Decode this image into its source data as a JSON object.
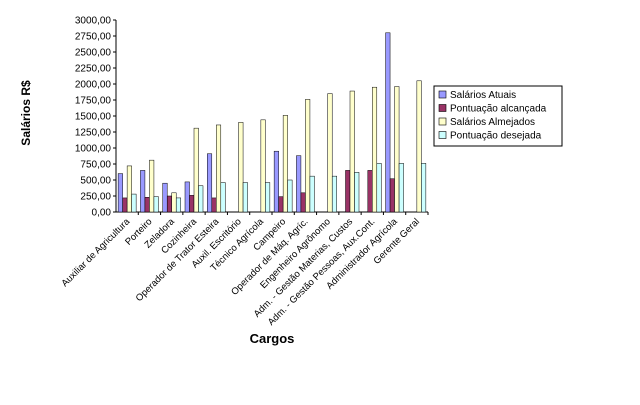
{
  "chart_data": {
    "type": "bar",
    "title": "",
    "xlabel": "Cargos",
    "ylabel": "Salários R$",
    "ylim": [
      0,
      3000
    ],
    "ytick_step": 250,
    "ytick_labels": [
      "0,00",
      "250,00",
      "500,00",
      "750,00",
      "1000,00",
      "1250,00",
      "1500,00",
      "1750,00",
      "2000,00",
      "2250,00",
      "2500,00",
      "2750,00",
      "3000,00"
    ],
    "grid": false,
    "legend_position": "right",
    "categories": [
      "Auxiliar de Agricultura",
      "Porteiro",
      "Zeladora",
      "Cozinheira",
      "Operador de Trator Esteira",
      "Auxil. Escritório",
      "Técnico Agrícola",
      "Campeiro",
      "Operador de Máq. Agríc.",
      "Engenheiro Agrônomo",
      "Adm. - Gestão Materias, Custos",
      "Adm. - Gestão Pessoas, Aux.Cont.",
      "Administrador Agrícola",
      "Gerente Geral"
    ],
    "series": [
      {
        "name": "Salários Atuais",
        "color": "#9999ff",
        "values": [
          600,
          650,
          450,
          470,
          910,
          null,
          null,
          950,
          880,
          null,
          null,
          null,
          2800,
          null
        ]
      },
      {
        "name": "Pontuação alcançada",
        "color": "#993366",
        "values": [
          220,
          230,
          250,
          260,
          220,
          null,
          null,
          240,
          300,
          null,
          650,
          650,
          520,
          null
        ]
      },
      {
        "name": "Salários Almejados",
        "color": "#ffffcc",
        "values": [
          720,
          810,
          300,
          1310,
          1360,
          1400,
          1440,
          1510,
          1760,
          1850,
          1890,
          1950,
          1960,
          2050
        ]
      },
      {
        "name": "Pontuação desejada",
        "color": "#ccffff",
        "values": [
          280,
          240,
          220,
          410,
          460,
          460,
          460,
          500,
          560,
          560,
          620,
          760,
          760,
          760
        ]
      }
    ]
  }
}
